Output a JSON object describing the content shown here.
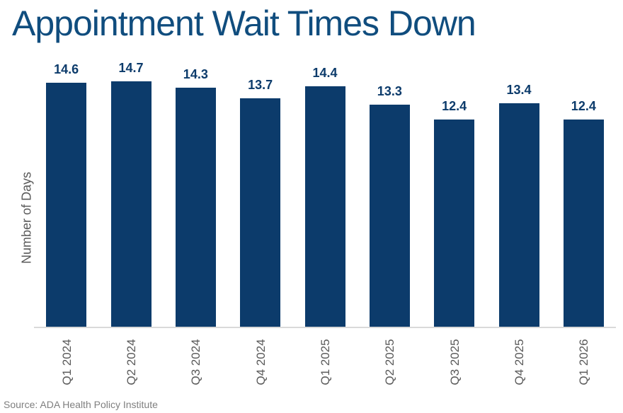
{
  "chart_data": {
    "type": "bar",
    "title": "Appointment Wait Times Down",
    "categories": [
      "Q1 2024",
      "Q2 2024",
      "Q3 2024",
      "Q4 2024",
      "Q1 2025",
      "Q2 2025",
      "Q3 2025",
      "Q4 2025",
      "Q1 2026"
    ],
    "values": [
      14.6,
      14.7,
      14.3,
      13.7,
      14.4,
      13.3,
      12.4,
      13.4,
      12.4
    ],
    "data_labels": [
      "14.6",
      "14.7",
      "14.3",
      "13.7",
      "14.4",
      "13.3",
      "12.4",
      "13.4",
      "12.4"
    ],
    "xlabel": "",
    "ylabel": "Number of Days",
    "ylim": [
      0,
      15.76
    ],
    "grid": false,
    "legend": null,
    "y_axis_ticks_visible": false,
    "colors": {
      "bar": "#0c3b6b",
      "title": "#104d7e",
      "value_label": "#0c3b6b",
      "tick_label": "#595959",
      "y_axis_title": "#595959",
      "axis_line": "#d9d9d9",
      "source": "#7f7f7f",
      "background": "#ffffff"
    }
  },
  "source": {
    "text": "Source: ADA Health Policy Institute"
  }
}
